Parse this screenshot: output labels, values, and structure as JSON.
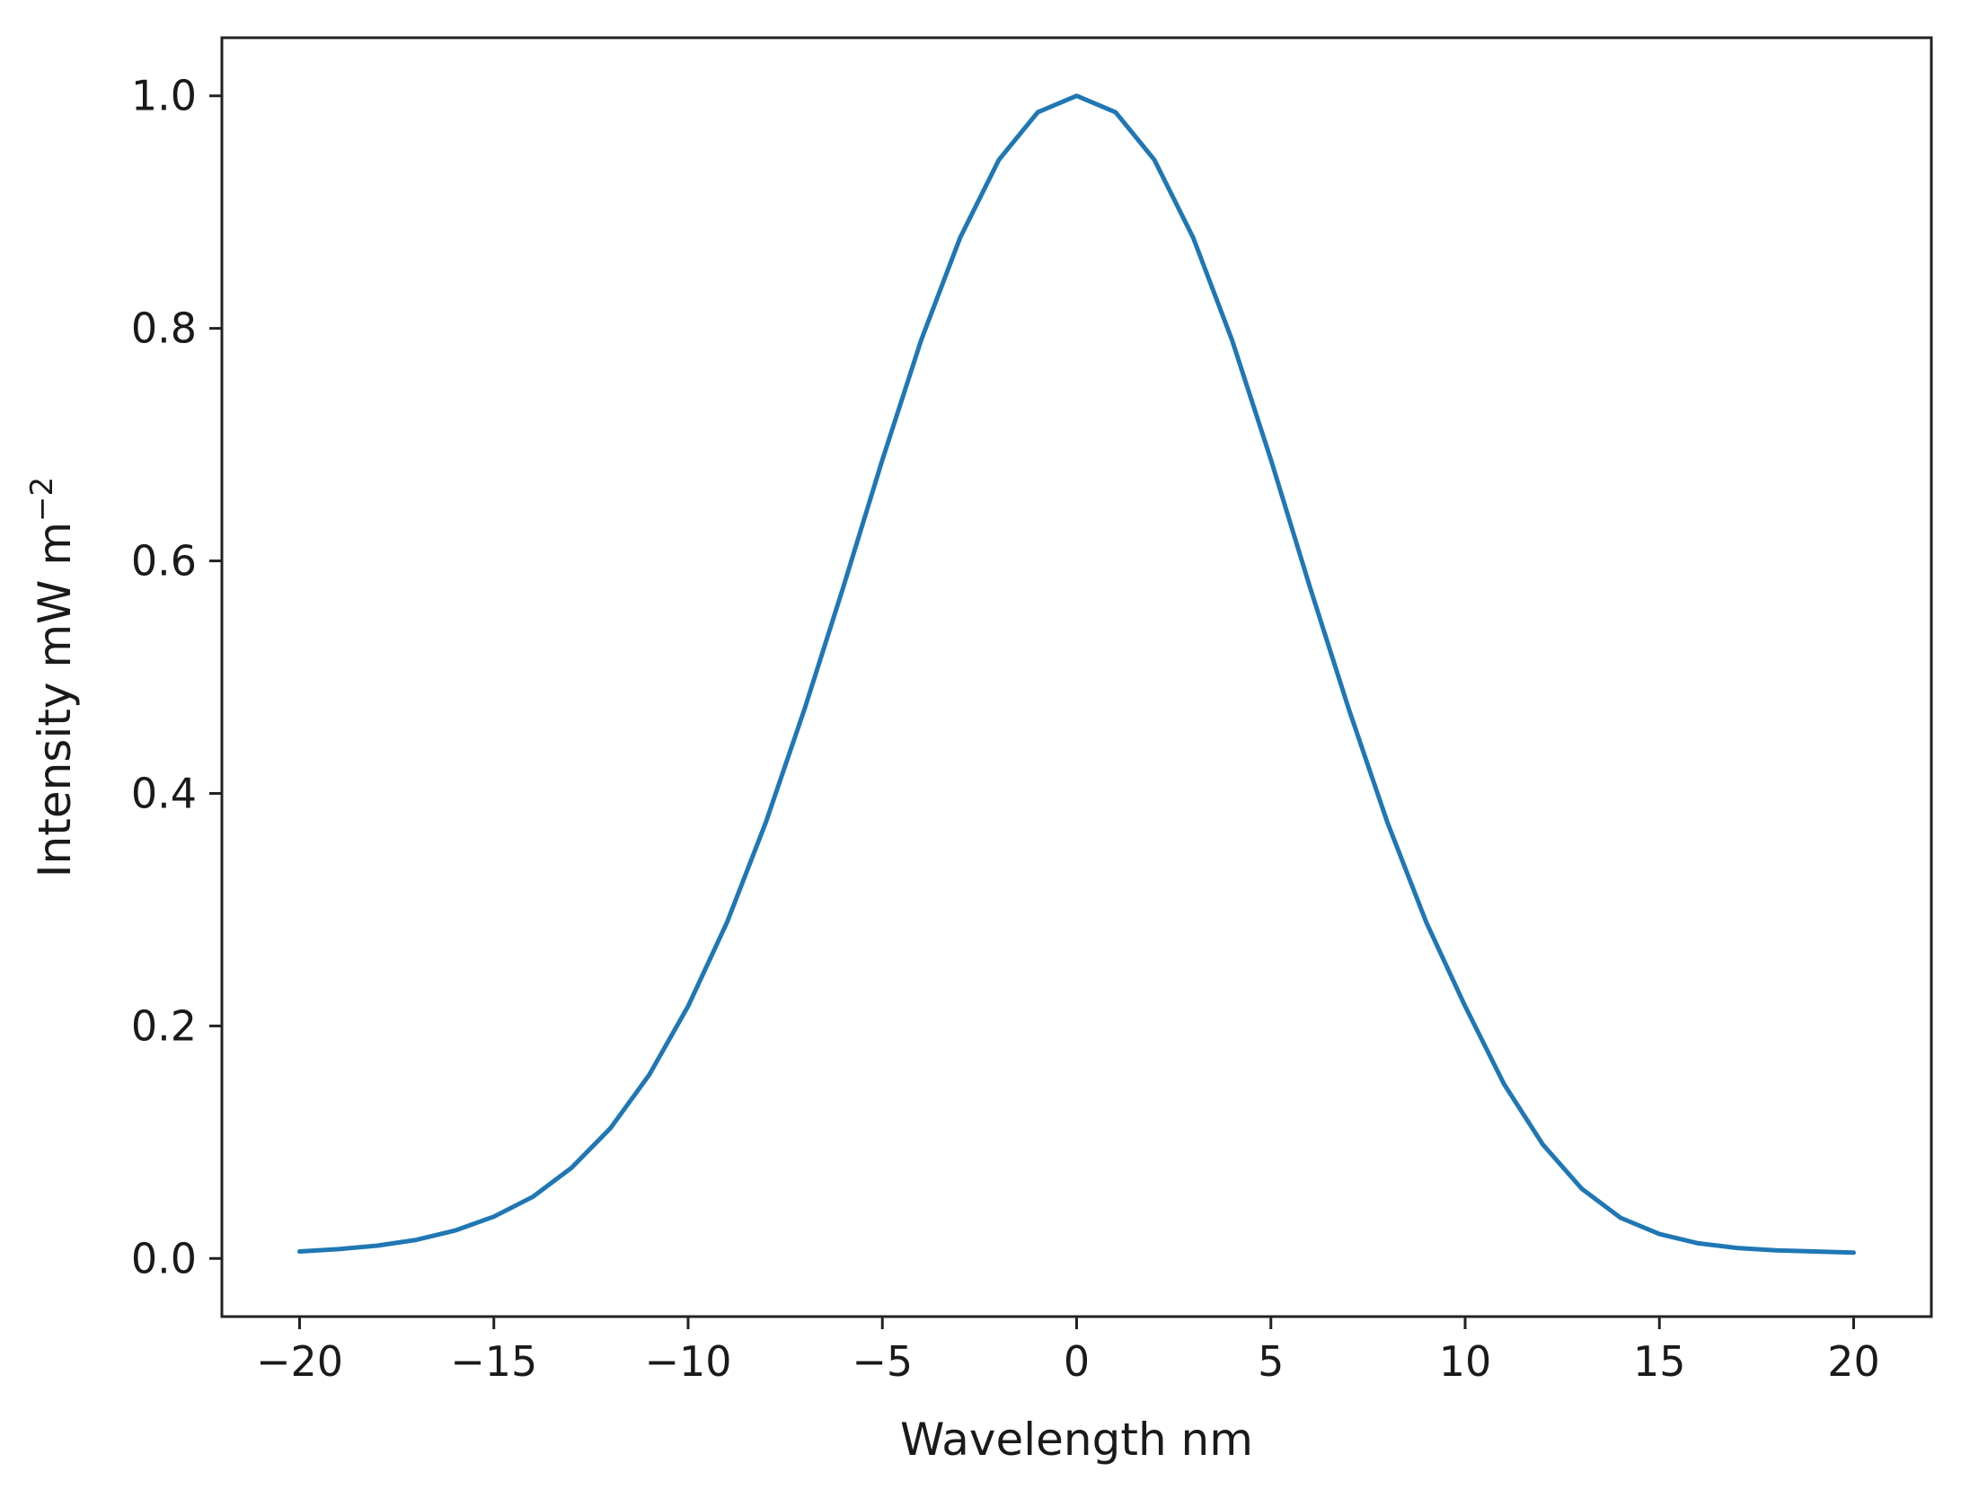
{
  "chart_data": {
    "type": "line",
    "xlabel": "Wavelength nm",
    "ylabel_main": "Intensity mW m",
    "ylabel_exponent": "−2",
    "xlim": [
      -22,
      22
    ],
    "ylim": [
      -0.05,
      1.05
    ],
    "xticks": [
      -20,
      -15,
      -10,
      -5,
      0,
      5,
      10,
      15,
      20
    ],
    "xtick_labels": [
      "−20",
      "−15",
      "−10",
      "−5",
      "0",
      "5",
      "10",
      "15",
      "20"
    ],
    "yticks": [
      0.0,
      0.2,
      0.4,
      0.6,
      0.8,
      1.0
    ],
    "ytick_labels": [
      "0.0",
      "0.2",
      "0.4",
      "0.6",
      "0.8",
      "1.0"
    ],
    "grid": false,
    "line_color": "#1f77b4",
    "series": [
      {
        "x": [
          -20,
          -19,
          -18,
          -17,
          -16,
          -15,
          -14,
          -13,
          -12,
          -11,
          -10,
          -9,
          -8,
          -7,
          -6,
          -5,
          -4,
          -3,
          -2,
          -1,
          0,
          1,
          2,
          3,
          4,
          5,
          6,
          7,
          8,
          9,
          10,
          11,
          12,
          13,
          14,
          15,
          16,
          17,
          18,
          19,
          20
        ],
        "y": [
          0.006,
          0.008,
          0.011,
          0.016,
          0.024,
          0.036,
          0.053,
          0.078,
          0.112,
          0.158,
          0.217,
          0.289,
          0.375,
          0.473,
          0.578,
          0.687,
          0.79,
          0.878,
          0.945,
          0.986,
          1.0,
          0.986,
          0.945,
          0.878,
          0.79,
          0.687,
          0.578,
          0.473,
          0.375,
          0.289,
          0.217,
          0.15,
          0.098,
          0.06,
          0.035,
          0.021,
          0.013,
          0.009,
          0.007,
          0.006,
          0.005
        ]
      }
    ]
  }
}
